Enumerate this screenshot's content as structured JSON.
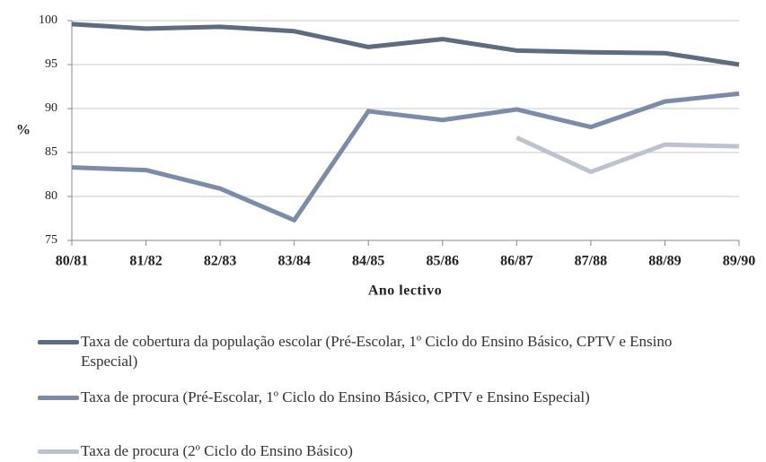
{
  "chart_data": {
    "type": "line",
    "y_label": "%",
    "x_label": "Ano lectivo",
    "categories": [
      "80/81",
      "81/82",
      "82/83",
      "83/84",
      "84/85",
      "85/86",
      "86/87",
      "87/88",
      "88/89",
      "89/90"
    ],
    "series": [
      {
        "name": "Taxa de cobertura da população escolar (Pré-Escolar, 1º Ciclo do Ensino Básico, CPTV e Ensino Especial)",
        "color": "#5f6b80",
        "values": [
          99.6,
          99.1,
          99.3,
          98.8,
          97.0,
          97.9,
          96.6,
          96.4,
          96.3,
          95.0
        ]
      },
      {
        "name": "Taxa de procura (Pré-Escolar, 1º Ciclo do Ensino Básico, CPTV e Ensino Especial)",
        "color": "#7b8ba8",
        "values": [
          83.3,
          83.0,
          80.9,
          77.3,
          89.7,
          88.7,
          89.9,
          87.9,
          90.8,
          91.7
        ]
      },
      {
        "name": "Taxa de procura (2º Ciclo do Ensino Básico)",
        "color": "#bcc2cf",
        "values": [
          null,
          null,
          null,
          null,
          null,
          null,
          86.7,
          82.8,
          85.9,
          85.7
        ]
      }
    ],
    "ylim": [
      75,
      100
    ],
    "yticks": [
      75,
      80,
      85,
      90,
      95,
      100
    ],
    "grid": true
  }
}
